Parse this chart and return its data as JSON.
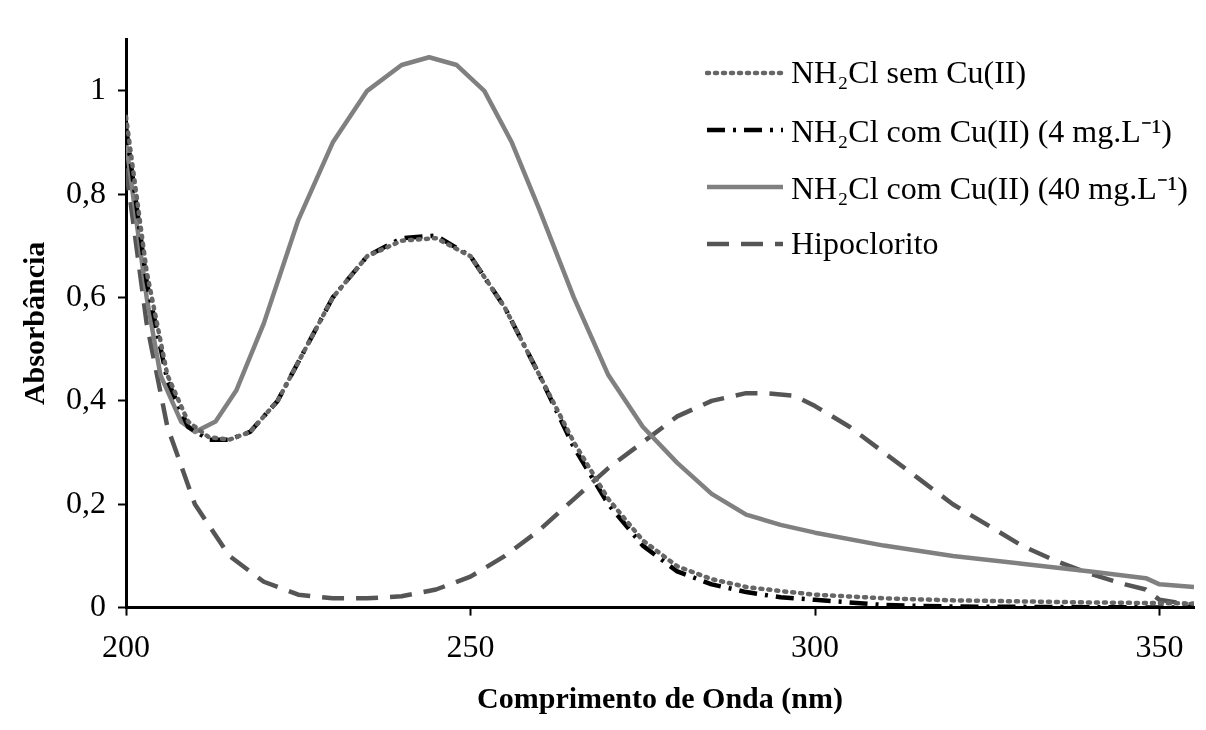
{
  "chart_data": {
    "type": "line",
    "xlabel": "Comprimento de Onda (nm)",
    "ylabel": "Absorbância",
    "xlim": [
      200,
      355
    ],
    "xticks": [
      200,
      250,
      300,
      350
    ],
    "ylim": [
      0,
      1.1
    ],
    "yticks": [
      0,
      {
        "value": 0.2,
        "label": "0,2"
      },
      {
        "value": 0.4,
        "label": "0,4"
      },
      {
        "value": 0.6,
        "label": "0,6"
      },
      {
        "value": 0.8,
        "label": "0,8"
      },
      1
    ],
    "grid": false,
    "legend": "top right",
    "marker": "none",
    "series": [
      {
        "name": "NH₂Cl sem Cu(II)",
        "color": "#666666",
        "line_style": "dotted",
        "x": [
          200,
          203,
          206,
          209,
          212,
          215,
          218,
          222,
          226,
          230,
          235,
          240,
          245,
          250,
          255,
          260,
          265,
          270,
          275,
          280,
          285,
          290,
          295,
          300,
          310,
          320,
          330,
          340,
          355
        ],
        "values": [
          0.95,
          0.65,
          0.45,
          0.36,
          0.33,
          0.325,
          0.34,
          0.4,
          0.5,
          0.6,
          0.68,
          0.71,
          0.715,
          0.68,
          0.58,
          0.45,
          0.32,
          0.21,
          0.13,
          0.08,
          0.055,
          0.04,
          0.032,
          0.025,
          0.018,
          0.014,
          0.012,
          0.01,
          0.008
        ]
      },
      {
        "name": "NH₂Cl com Cu(II) (4 mg.L⁻¹)",
        "color": "#000000",
        "line_style": "dashdot",
        "x": [
          200,
          203,
          206,
          209,
          212,
          215,
          218,
          222,
          226,
          230,
          235,
          240,
          245,
          250,
          255,
          260,
          265,
          270,
          275,
          280,
          285,
          290,
          295,
          300,
          310,
          320,
          355
        ],
        "values": [
          0.93,
          0.63,
          0.44,
          0.35,
          0.325,
          0.325,
          0.34,
          0.4,
          0.5,
          0.6,
          0.68,
          0.715,
          0.72,
          0.68,
          0.58,
          0.45,
          0.31,
          0.2,
          0.12,
          0.07,
          0.045,
          0.03,
          0.02,
          0.015,
          0.005,
          0.002,
          0
        ]
      },
      {
        "name": "NH₂Cl com Cu(II) (40 mg.L⁻¹)",
        "color": "#808080",
        "line_style": "solid",
        "x": [
          200,
          203,
          205,
          208,
          210,
          213,
          216,
          220,
          225,
          230,
          235,
          240,
          244,
          248,
          252,
          256,
          260,
          265,
          270,
          275,
          280,
          285,
          290,
          295,
          300,
          310,
          320,
          330,
          340,
          348,
          350,
          355
        ],
        "values": [
          0.9,
          0.6,
          0.45,
          0.36,
          0.34,
          0.36,
          0.42,
          0.55,
          0.75,
          0.9,
          1,
          1.05,
          1.065,
          1.05,
          1,
          0.9,
          0.77,
          0.6,
          0.45,
          0.35,
          0.28,
          0.22,
          0.18,
          0.16,
          0.145,
          0.12,
          0.1,
          0.085,
          0.07,
          0.057,
          0.045,
          0.04
        ]
      },
      {
        "name": "Hipoclorito",
        "color": "#555555",
        "line_style": "dashed",
        "x": [
          200,
          203,
          206,
          210,
          215,
          220,
          225,
          230,
          235,
          240,
          245,
          250,
          255,
          260,
          265,
          270,
          275,
          280,
          285,
          290,
          293,
          297,
          300,
          305,
          310,
          315,
          320,
          325,
          330,
          335,
          340,
          345,
          348,
          350,
          355
        ],
        "values": [
          0.85,
          0.55,
          0.35,
          0.2,
          0.1,
          0.05,
          0.025,
          0.018,
          0.018,
          0.022,
          0.035,
          0.06,
          0.1,
          0.15,
          0.21,
          0.27,
          0.32,
          0.37,
          0.4,
          0.415,
          0.415,
          0.41,
          0.39,
          0.35,
          0.3,
          0.25,
          0.2,
          0.16,
          0.12,
          0.09,
          0.065,
          0.045,
          0.035,
          0.015,
          0.005
        ]
      }
    ]
  }
}
